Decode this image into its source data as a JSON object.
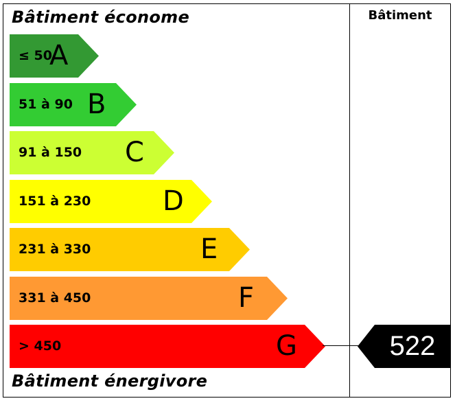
{
  "header": {
    "top_title": "Bâtiment économe",
    "bottom_title": "Bâtiment énergivore",
    "column_title": "Bâtiment"
  },
  "classes": [
    {
      "letter": "A",
      "range": "≤ 50",
      "color": "#339933"
    },
    {
      "letter": "B",
      "range": "51 à 90",
      "color": "#33cc33"
    },
    {
      "letter": "C",
      "range": "91 à 150",
      "color": "#ccff33"
    },
    {
      "letter": "D",
      "range": "151 à 230",
      "color": "#ffff00"
    },
    {
      "letter": "E",
      "range": "231 à 330",
      "color": "#ffcc00"
    },
    {
      "letter": "F",
      "range": "331 à 450",
      "color": "#ff9933"
    },
    {
      "letter": "G",
      "range": "> 450",
      "color": "#ff0000"
    }
  ],
  "building": {
    "value": "522",
    "class": "G",
    "marker_color": "#000000"
  }
}
